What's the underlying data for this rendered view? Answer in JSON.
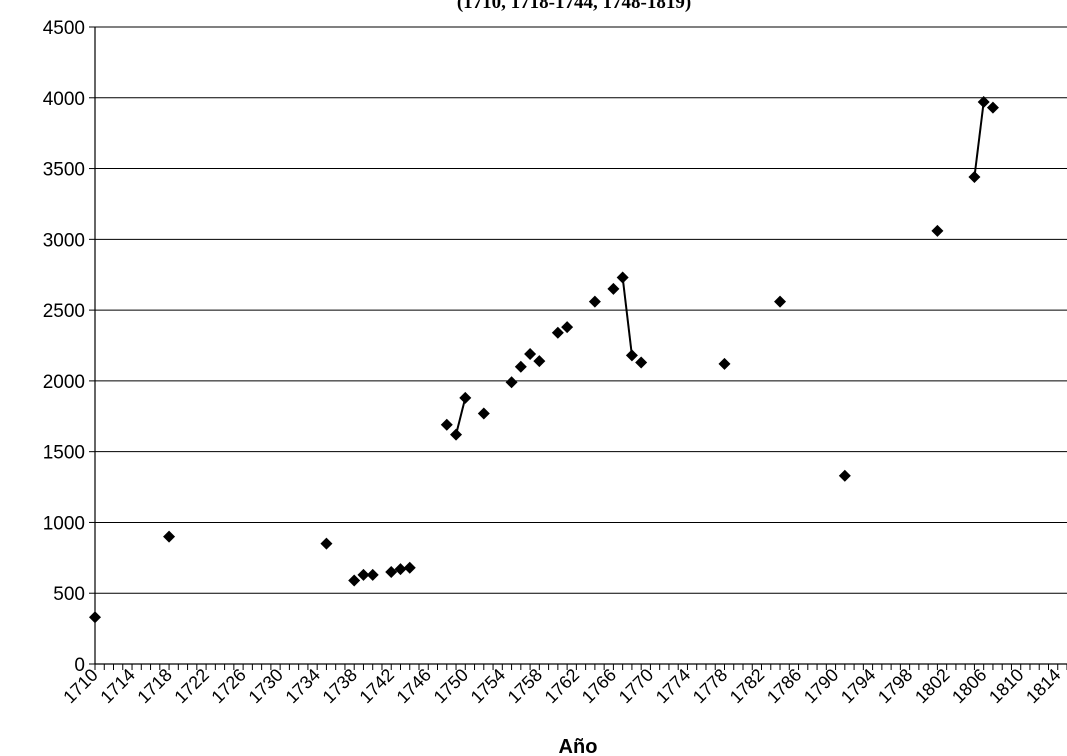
{
  "chart_data": {
    "type": "scatter",
    "title": "(1710, 1718-1744, 1748-1819)",
    "xlabel": "Año",
    "ylabel": "",
    "xlim": [
      1710,
      1815
    ],
    "ylim": [
      0,
      4500
    ],
    "yticks": [
      0,
      500,
      1000,
      1500,
      2000,
      2500,
      3000,
      3500,
      4000,
      4500
    ],
    "xticks": [
      1710,
      1714,
      1718,
      1722,
      1726,
      1730,
      1734,
      1738,
      1742,
      1746,
      1750,
      1754,
      1758,
      1762,
      1766,
      1770,
      1774,
      1778,
      1782,
      1786,
      1790,
      1794,
      1798,
      1802,
      1806,
      1810,
      1814
    ],
    "grid": true,
    "marker": "diamond",
    "color": "#000000",
    "points": [
      {
        "x": 1710,
        "y": 330
      },
      {
        "x": 1718,
        "y": 900
      },
      {
        "x": 1735,
        "y": 850
      },
      {
        "x": 1738,
        "y": 590
      },
      {
        "x": 1739,
        "y": 630
      },
      {
        "x": 1740,
        "y": 630
      },
      {
        "x": 1742,
        "y": 650
      },
      {
        "x": 1743,
        "y": 670
      },
      {
        "x": 1744,
        "y": 680
      },
      {
        "x": 1748,
        "y": 1690
      },
      {
        "x": 1749,
        "y": 1620
      },
      {
        "x": 1750,
        "y": 1880
      },
      {
        "x": 1752,
        "y": 1770
      },
      {
        "x": 1755,
        "y": 1990
      },
      {
        "x": 1756,
        "y": 2100
      },
      {
        "x": 1757,
        "y": 2190
      },
      {
        "x": 1758,
        "y": 2140
      },
      {
        "x": 1760,
        "y": 2340
      },
      {
        "x": 1761,
        "y": 2380
      },
      {
        "x": 1764,
        "y": 2560
      },
      {
        "x": 1766,
        "y": 2650
      },
      {
        "x": 1767,
        "y": 2730
      },
      {
        "x": 1768,
        "y": 2180
      },
      {
        "x": 1769,
        "y": 2130
      },
      {
        "x": 1778,
        "y": 2120
      },
      {
        "x": 1784,
        "y": 2560
      },
      {
        "x": 1791,
        "y": 1330
      },
      {
        "x": 1801,
        "y": 3060
      },
      {
        "x": 1805,
        "y": 3440
      },
      {
        "x": 1806,
        "y": 3970
      },
      {
        "x": 1807,
        "y": 3930
      }
    ],
    "line_segments": [
      [
        {
          "x": 1749,
          "y": 1620
        },
        {
          "x": 1750,
          "y": 1880
        }
      ],
      [
        {
          "x": 1767,
          "y": 2730
        },
        {
          "x": 1768,
          "y": 2180
        }
      ],
      [
        {
          "x": 1805,
          "y": 3440
        },
        {
          "x": 1806,
          "y": 3970
        }
      ]
    ]
  }
}
